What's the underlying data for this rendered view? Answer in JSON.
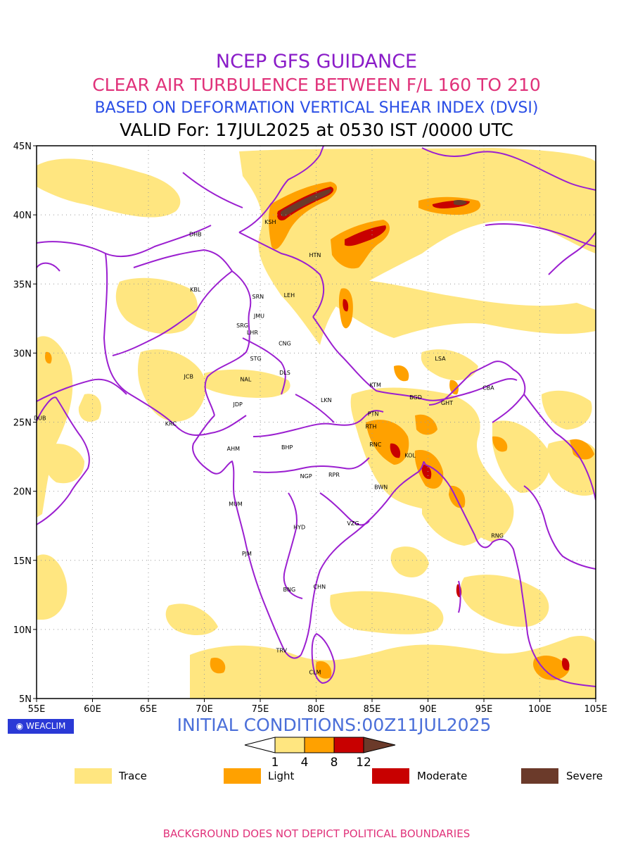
{
  "header": {
    "line1": "NCEP GFS GUIDANCE",
    "line2": "CLEAR AIR TURBULENCE BETWEEN F/L 160 TO 210",
    "line3": "BASED ON DEFORMATION VERTICAL SHEAR INDEX (DVSI)",
    "line4": "VALID For: 17JUL2025 at 0530 IST /0000 UTC"
  },
  "map": {
    "lon_range": [
      55,
      105
    ],
    "lat_range": [
      5,
      45
    ],
    "lat_ticks": [
      "45N",
      "40N",
      "35N",
      "30N",
      "25N",
      "20N",
      "15N",
      "10N",
      "5N"
    ],
    "lon_ticks": [
      "55E",
      "60E",
      "65E",
      "70E",
      "75E",
      "80E",
      "85E",
      "90E",
      "95E",
      "100E",
      "105E"
    ],
    "grid": true,
    "boundary_color": "#9b1fd0",
    "cities": [
      {
        "code": "DHB",
        "lon": 69.2,
        "lat": 38.6
      },
      {
        "code": "KSH",
        "lon": 75.9,
        "lat": 39.5
      },
      {
        "code": "HTN",
        "lon": 79.9,
        "lat": 37.1
      },
      {
        "code": "KBL",
        "lon": 69.2,
        "lat": 34.6
      },
      {
        "code": "SRN",
        "lon": 74.8,
        "lat": 34.1
      },
      {
        "code": "LEH",
        "lon": 77.6,
        "lat": 34.2
      },
      {
        "code": "JMU",
        "lon": 74.9,
        "lat": 32.7
      },
      {
        "code": "SRG",
        "lon": 73.4,
        "lat": 32.0
      },
      {
        "code": "LHR",
        "lon": 74.3,
        "lat": 31.5
      },
      {
        "code": "CNG",
        "lon": 77.2,
        "lat": 30.7
      },
      {
        "code": "STG",
        "lon": 74.6,
        "lat": 29.6
      },
      {
        "code": "JCB",
        "lon": 68.6,
        "lat": 28.3
      },
      {
        "code": "NAL",
        "lon": 73.7,
        "lat": 28.1
      },
      {
        "code": "DLS",
        "lon": 77.2,
        "lat": 28.6
      },
      {
        "code": "LSA",
        "lon": 91.1,
        "lat": 29.6
      },
      {
        "code": "KTM",
        "lon": 85.3,
        "lat": 27.7
      },
      {
        "code": "CBA",
        "lon": 95.4,
        "lat": 27.5
      },
      {
        "code": "BGD",
        "lon": 88.9,
        "lat": 26.8
      },
      {
        "code": "GHT",
        "lon": 91.7,
        "lat": 26.4
      },
      {
        "code": "LKN",
        "lon": 80.9,
        "lat": 26.6
      },
      {
        "code": "JDP",
        "lon": 73.0,
        "lat": 26.3
      },
      {
        "code": "PTN",
        "lon": 85.1,
        "lat": 25.6
      },
      {
        "code": "DUB",
        "lon": 55.3,
        "lat": 25.3
      },
      {
        "code": "KRC",
        "lon": 67.0,
        "lat": 24.9
      },
      {
        "code": "RTH",
        "lon": 84.9,
        "lat": 24.7
      },
      {
        "code": "BHP",
        "lon": 77.4,
        "lat": 23.2
      },
      {
        "code": "AHM",
        "lon": 72.6,
        "lat": 23.1
      },
      {
        "code": "RNC",
        "lon": 85.3,
        "lat": 23.4
      },
      {
        "code": "KOL",
        "lon": 88.4,
        "lat": 22.6
      },
      {
        "code": "NGP",
        "lon": 79.1,
        "lat": 21.1
      },
      {
        "code": "RPR",
        "lon": 81.6,
        "lat": 21.2
      },
      {
        "code": "BWN",
        "lon": 85.8,
        "lat": 20.3
      },
      {
        "code": "MUM",
        "lon": 72.8,
        "lat": 19.1
      },
      {
        "code": "HYD",
        "lon": 78.5,
        "lat": 17.4
      },
      {
        "code": "VZG",
        "lon": 83.3,
        "lat": 17.7
      },
      {
        "code": "RNG",
        "lon": 96.2,
        "lat": 16.8
      },
      {
        "code": "PJM",
        "lon": 73.8,
        "lat": 15.5
      },
      {
        "code": "CHN",
        "lon": 80.3,
        "lat": 13.1
      },
      {
        "code": "BNG",
        "lon": 77.6,
        "lat": 12.9
      },
      {
        "code": "TRV",
        "lon": 76.9,
        "lat": 8.5
      },
      {
        "code": "CLM",
        "lon": 79.9,
        "lat": 6.9
      }
    ]
  },
  "branding": {
    "logo": "WEACLIM"
  },
  "initial_conditions": "INITIAL CONDITIONS:00Z11JUL2025",
  "colorbar": {
    "labels": [
      "1",
      "4",
      "8",
      "12"
    ],
    "colors": [
      "#ffffff",
      "#ffe680",
      "#ffa100",
      "#c80000",
      "#6b3a2a"
    ]
  },
  "legend": [
    {
      "label": "Trace",
      "color": "#ffe680"
    },
    {
      "label": "Light",
      "color": "#ffa100"
    },
    {
      "label": "Moderate",
      "color": "#c80000"
    },
    {
      "label": "Severe",
      "color": "#6b3a2a"
    }
  ],
  "footer": "BACKGROUND DOES NOT DEPICT POLITICAL BOUNDARIES"
}
